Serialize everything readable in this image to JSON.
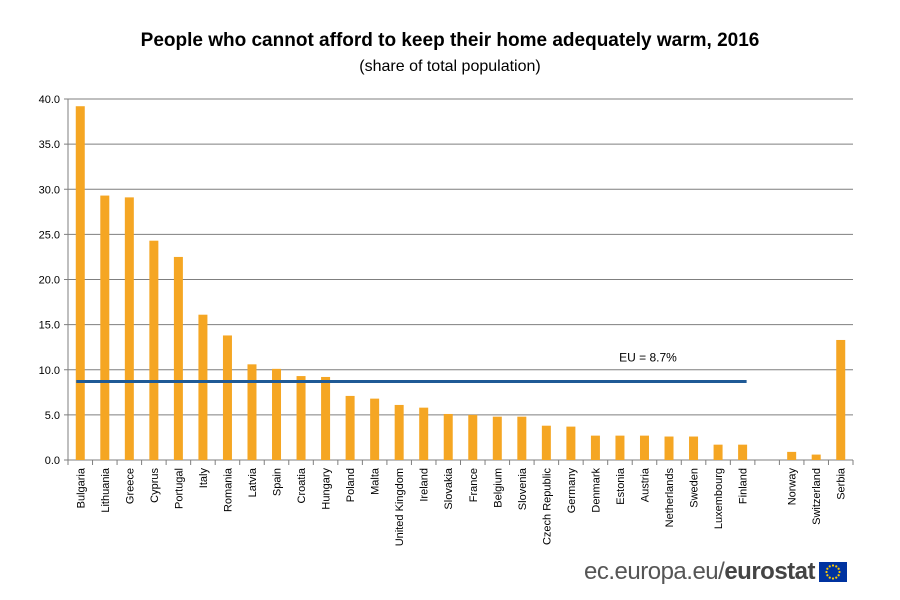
{
  "title": "People who cannot afford to keep their home adequately warm, 2016",
  "subtitle": "(share of total population)",
  "footer": {
    "domain": "ec.europa.eu/",
    "brand": "eurostat"
  },
  "colors": {
    "bar": "#F5A623",
    "eu_line": "#1F5A96",
    "grid": "#7f7f7f",
    "flag_blue": "#0033A0",
    "flag_star": "#FFCC00"
  },
  "icons": [
    "eu-flag-icon"
  ],
  "chart_data": {
    "type": "bar",
    "title": "People who cannot afford to keep their home adequately warm, 2016",
    "subtitle": "(share of total population)",
    "categories": [
      "Bulgaria",
      "Lithuania",
      "Greece",
      "Cyprus",
      "Portugal",
      "Italy",
      "Romania",
      "Latvia",
      "Spain",
      "Croatia",
      "Hungary",
      "Poland",
      "Malta",
      "United Kingdom",
      "Ireland",
      "Slovakia",
      "France",
      "Belgium",
      "Slovenia",
      "Czech Republic",
      "Germany",
      "Denmark",
      "Estonia",
      "Austria",
      "Netherlands",
      "Sweden",
      "Luxembourg",
      "Finland",
      "",
      "Norway",
      "Switzerland",
      "Serbia"
    ],
    "values": [
      39.2,
      29.3,
      29.1,
      24.3,
      22.5,
      16.1,
      13.8,
      10.6,
      10.1,
      9.3,
      9.2,
      7.1,
      6.8,
      6.1,
      5.8,
      5.1,
      5.0,
      4.8,
      4.8,
      3.8,
      3.7,
      2.7,
      2.7,
      2.7,
      2.6,
      2.6,
      1.7,
      1.7,
      null,
      0.9,
      0.6,
      13.3
    ],
    "ylim": [
      0,
      40
    ],
    "yticks": [
      "0.0",
      "5.0",
      "10.0",
      "15.0",
      "20.0",
      "25.0",
      "30.0",
      "35.0",
      "40.0"
    ],
    "grid": true,
    "reference_line": {
      "label": "EU = 8.7%",
      "value": 8.7
    },
    "xlabel": "",
    "ylabel": ""
  }
}
